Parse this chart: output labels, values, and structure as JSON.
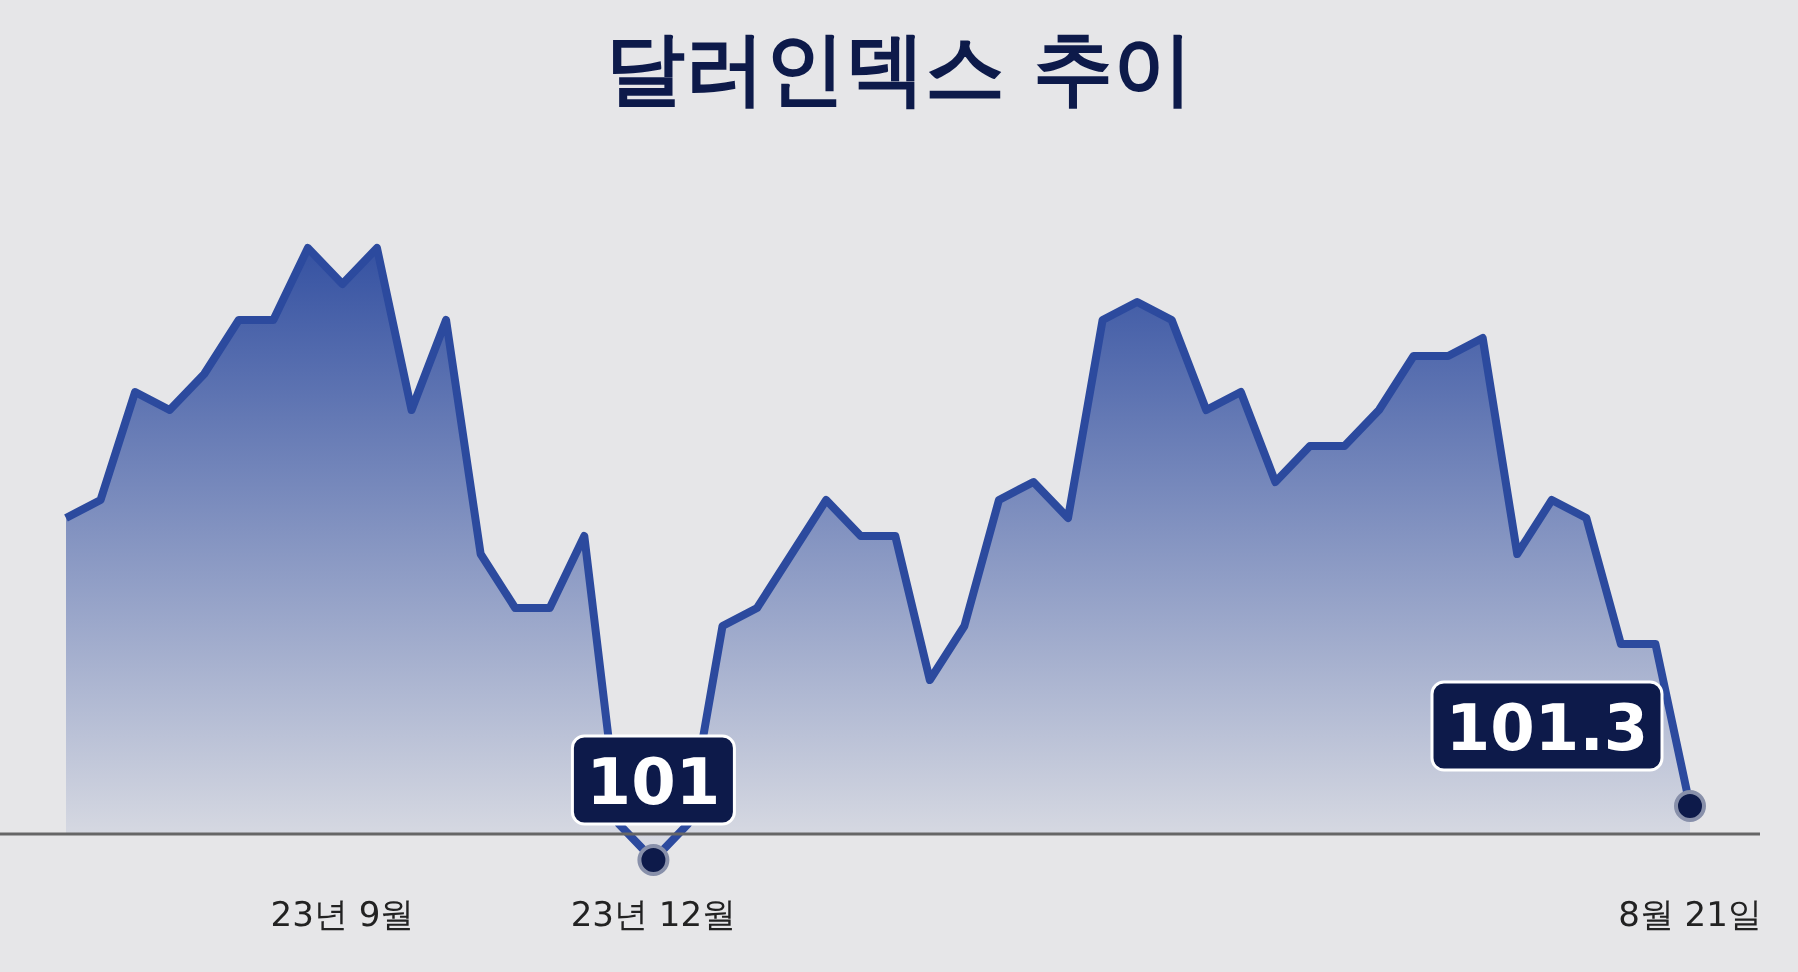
{
  "chart_data": {
    "type": "area",
    "title": "달러인덱스 추이",
    "color": "#2c4a9e",
    "categories": [
      null,
      null,
      null,
      null,
      null,
      null,
      null,
      null,
      "23년 9월",
      null,
      null,
      null,
      null,
      null,
      null,
      null,
      null,
      "23년 12월",
      null,
      null,
      null,
      null,
      null,
      null,
      null,
      null,
      null,
      null,
      null,
      null,
      null,
      null,
      null,
      null,
      null,
      null,
      null,
      null,
      null,
      null,
      null,
      null,
      null,
      null,
      null,
      null,
      null,
      "8월 21일"
    ],
    "values": [
      102.9,
      103.0,
      103.6,
      103.5,
      103.7,
      104.0,
      104.0,
      104.4,
      104.2,
      104.4,
      103.5,
      104.0,
      102.7,
      102.4,
      102.4,
      102.8,
      101.2,
      101,
      101.2,
      102.3,
      102.4,
      102.7,
      103.0,
      102.8,
      102.8,
      102.0,
      102.3,
      103.0,
      103.1,
      102.9,
      104.0,
      104.1,
      104.0,
      103.5,
      103.6,
      103.1,
      103.3,
      103.3,
      103.5,
      103.8,
      103.8,
      103.9,
      102.7,
      103.0,
      102.9,
      102.2,
      102.2,
      101.3
    ],
    "value_labels": [
      null,
      null,
      null,
      null,
      null,
      null,
      null,
      null,
      null,
      null,
      null,
      null,
      null,
      null,
      null,
      null,
      null,
      "101",
      null,
      null,
      null,
      null,
      null,
      null,
      null,
      null,
      null,
      null,
      null,
      null,
      null,
      null,
      null,
      null,
      null,
      null,
      null,
      null,
      null,
      null,
      null,
      null,
      null,
      null,
      null,
      null,
      null,
      "101.3"
    ]
  }
}
